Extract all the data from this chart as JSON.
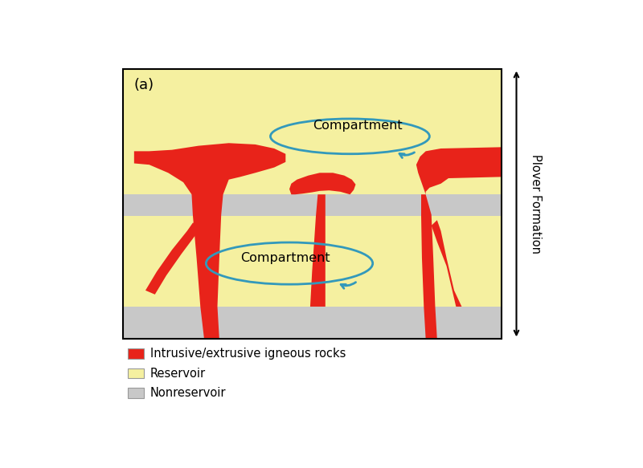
{
  "fig_width": 8.0,
  "fig_height": 5.83,
  "dpi": 100,
  "bg_color": "#ffffff",
  "nonreservoir_color": "#c8c8c8",
  "reservoir_color": "#f5f0a0",
  "igneous_color": "#e8231a",
  "ellipse_color": "#3399bb",
  "panel_label": "(a)",
  "plover_label": "Plover Formation",
  "legend_items": [
    {
      "label": "Intrusive/extrusive igneous rocks",
      "color": "#e8231a"
    },
    {
      "label": "Reservoir",
      "color": "#f5f0a0"
    },
    {
      "label": "Nonreservoir",
      "color": "#c8c8c8"
    }
  ]
}
